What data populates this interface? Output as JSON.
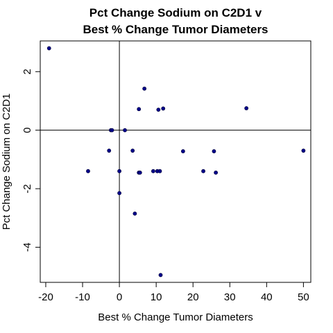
{
  "chart_data": {
    "type": "scatter",
    "title_lines": [
      "Pct Change Sodium on C2D1 v",
      "Best % Change Tumor Diameters"
    ],
    "xlabel": "Best % Change Tumor Diameters",
    "ylabel": "Pct Change Sodium on C2D1",
    "xlim": [
      -21.5,
      52
    ],
    "ylim": [
      -5.2,
      3.05
    ],
    "xticks": [
      -20,
      -10,
      0,
      10,
      20,
      30,
      40,
      50
    ],
    "xtick_labels": [
      "-20",
      "-10",
      "0",
      "10",
      "20",
      "30",
      "40",
      "50"
    ],
    "yticks": [
      -4,
      -2,
      0,
      2
    ],
    "ytick_labels": [
      "-4",
      "-2",
      "0",
      "2"
    ],
    "reference_lines": {
      "x": 0,
      "y": 0
    },
    "grid": false,
    "point_color": "#00008B",
    "points": [
      {
        "x": -19.1,
        "y": 2.8
      },
      {
        "x": -8.5,
        "y": -1.4
      },
      {
        "x": -2.8,
        "y": -0.7
      },
      {
        "x": -2.3,
        "y": 0.0
      },
      {
        "x": -2.0,
        "y": 0.0
      },
      {
        "x": 0.0,
        "y": -1.4
      },
      {
        "x": 0.0,
        "y": -2.15
      },
      {
        "x": 1.5,
        "y": 0.0
      },
      {
        "x": 3.6,
        "y": -0.7
      },
      {
        "x": 4.2,
        "y": -2.85
      },
      {
        "x": 5.3,
        "y": 0.72
      },
      {
        "x": 5.3,
        "y": -1.45
      },
      {
        "x": 5.6,
        "y": -1.45
      },
      {
        "x": 6.8,
        "y": 1.42
      },
      {
        "x": 9.2,
        "y": -1.4
      },
      {
        "x": 10.3,
        "y": -1.4
      },
      {
        "x": 10.6,
        "y": 0.7
      },
      {
        "x": 11.0,
        "y": -1.4
      },
      {
        "x": 11.2,
        "y": -4.95
      },
      {
        "x": 11.9,
        "y": 0.74
      },
      {
        "x": 17.3,
        "y": -0.72
      },
      {
        "x": 22.8,
        "y": -1.4
      },
      {
        "x": 25.7,
        "y": -0.72
      },
      {
        "x": 26.2,
        "y": -1.45
      },
      {
        "x": 34.5,
        "y": 0.75
      },
      {
        "x": 50.0,
        "y": -0.7
      }
    ]
  }
}
